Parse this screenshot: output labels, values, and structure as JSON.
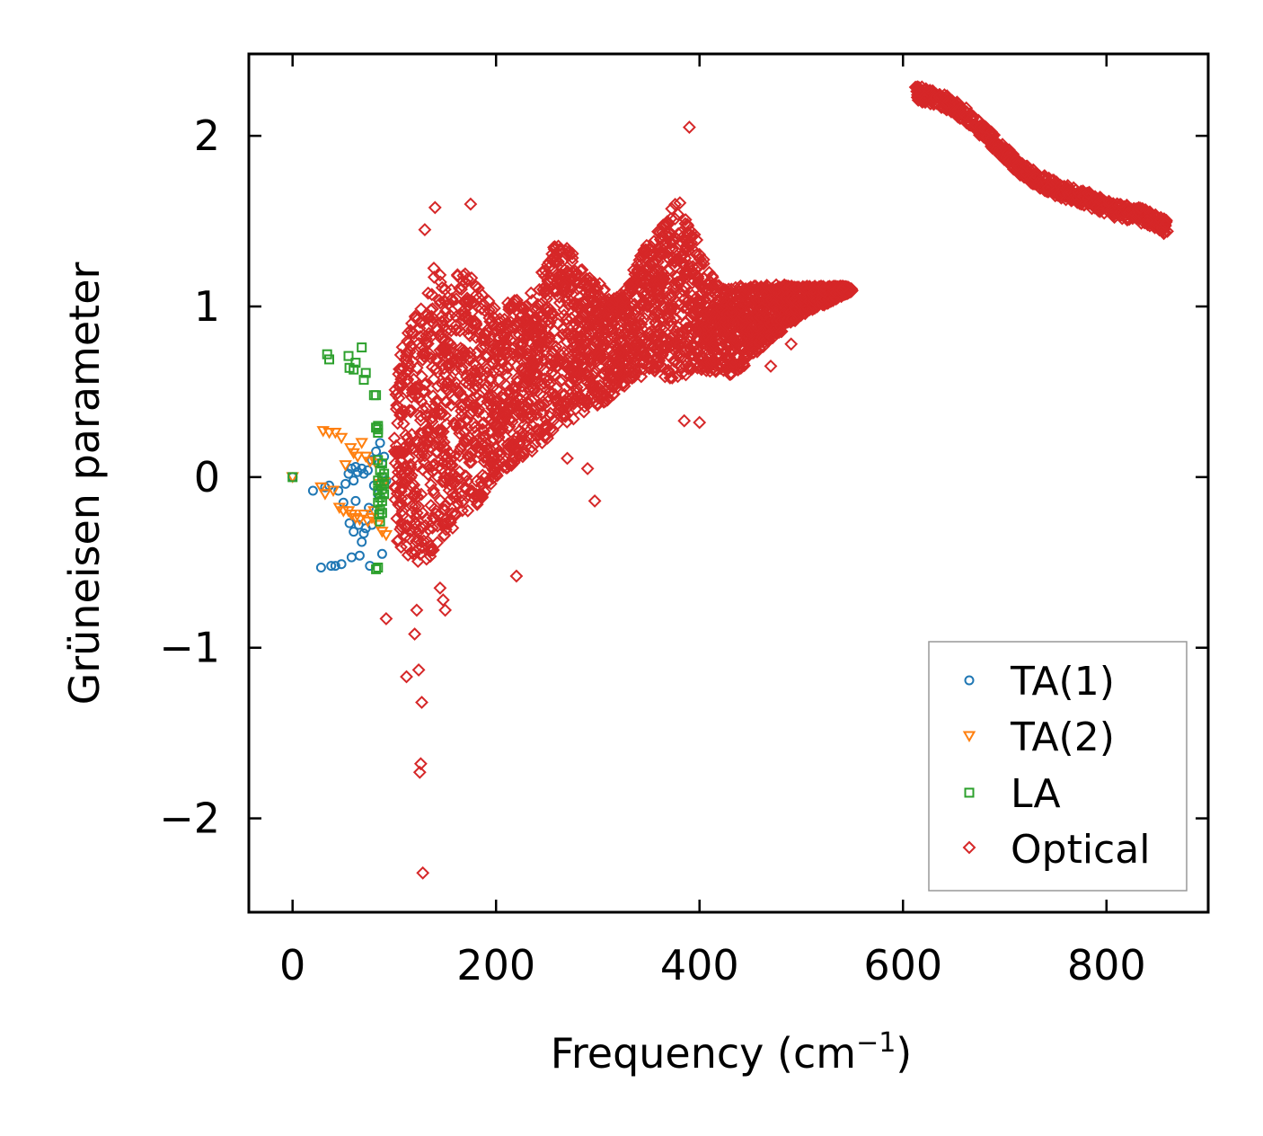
{
  "chart_data": {
    "type": "scatter",
    "title": "",
    "xlabel": "Frequency (cm",
    "xlabel_sup": "−1",
    "xlabel_close": ")",
    "ylabel": "Grüneisen parameter",
    "xlim": [
      -43,
      900
    ],
    "ylim": [
      -2.55,
      2.48
    ],
    "xticks": [
      0,
      200,
      400,
      600,
      800
    ],
    "yticks": [
      -2,
      -1,
      0,
      1,
      2
    ],
    "xtick_labels": [
      "0",
      "200",
      "400",
      "600",
      "800"
    ],
    "ytick_labels": [
      "−2",
      "−1",
      "0",
      "1",
      "2"
    ],
    "legend_position": "lower-right",
    "series": [
      {
        "name": "TA(1)",
        "color": "#1f77b4",
        "marker": "circle",
        "points": [
          [
            0,
            0
          ],
          [
            20,
            -0.08
          ],
          [
            28,
            -0.53
          ],
          [
            32,
            -0.06
          ],
          [
            36,
            -0.05
          ],
          [
            38,
            -0.52
          ],
          [
            42,
            -0.52
          ],
          [
            45,
            -0.08
          ],
          [
            48,
            -0.51
          ],
          [
            50,
            -0.15
          ],
          [
            52,
            -0.04
          ],
          [
            55,
            0.02
          ],
          [
            56,
            -0.27
          ],
          [
            58,
            -0.47
          ],
          [
            58,
            0.05
          ],
          [
            60,
            -0.02
          ],
          [
            60,
            -0.32
          ],
          [
            62,
            0.06
          ],
          [
            62,
            -0.14
          ],
          [
            64,
            0.03
          ],
          [
            65,
            -0.28
          ],
          [
            66,
            -0.46
          ],
          [
            68,
            0.05
          ],
          [
            68,
            -0.38
          ],
          [
            70,
            -0.33
          ],
          [
            70,
            0.02
          ],
          [
            72,
            -0.3
          ],
          [
            74,
            0.04
          ],
          [
            75,
            -0.18
          ],
          [
            76,
            -0.52
          ],
          [
            78,
            -0.28
          ],
          [
            78,
            0.1
          ],
          [
            80,
            -0.05
          ],
          [
            82,
            0.15
          ],
          [
            84,
            -0.1
          ],
          [
            86,
            0.2
          ],
          [
            88,
            0.08
          ],
          [
            88,
            -0.45
          ],
          [
            90,
            0.12
          ],
          [
            92,
            -0.02
          ]
        ]
      },
      {
        "name": "TA(2)",
        "color": "#ff7f0e",
        "marker": "triangle-down",
        "points": [
          [
            0,
            0
          ],
          [
            28,
            -0.06
          ],
          [
            30,
            0.27
          ],
          [
            32,
            -0.1
          ],
          [
            36,
            0.26
          ],
          [
            40,
            -0.08
          ],
          [
            42,
            0.26
          ],
          [
            46,
            -0.18
          ],
          [
            48,
            0.23
          ],
          [
            50,
            -0.2
          ],
          [
            52,
            0.07
          ],
          [
            55,
            -0.2
          ],
          [
            57,
            0.17
          ],
          [
            58,
            -0.22
          ],
          [
            60,
            0.14
          ],
          [
            62,
            -0.24
          ],
          [
            64,
            0.12
          ],
          [
            66,
            -0.25
          ],
          [
            68,
            0.2
          ],
          [
            70,
            -0.22
          ],
          [
            72,
            0.12
          ],
          [
            74,
            -0.26
          ],
          [
            76,
            0.09
          ],
          [
            78,
            -0.24
          ],
          [
            80,
            -0.2
          ],
          [
            82,
            0.08
          ],
          [
            84,
            -0.28
          ],
          [
            86,
            -0.04
          ],
          [
            88,
            -0.32
          ],
          [
            90,
            -0.03
          ],
          [
            92,
            -0.34
          ]
        ]
      },
      {
        "name": "LA",
        "color": "#2ca02c",
        "marker": "square",
        "points": [
          [
            0,
            0
          ],
          [
            34,
            0.72
          ],
          [
            36,
            0.69
          ],
          [
            55,
            0.71
          ],
          [
            56,
            0.64
          ],
          [
            60,
            0.63
          ],
          [
            62,
            0.67
          ],
          [
            68,
            0.76
          ],
          [
            70,
            0.57
          ],
          [
            72,
            0.61
          ],
          [
            80,
            0.48
          ],
          [
            82,
            0.48
          ],
          [
            82,
            0.29
          ],
          [
            84,
            0.3
          ],
          [
            84,
            0.28
          ],
          [
            84,
            0.26
          ],
          [
            84,
            -0.53
          ],
          [
            82,
            -0.54
          ],
          [
            84,
            0.1
          ],
          [
            84,
            -0.02
          ],
          [
            84,
            -0.08
          ],
          [
            84,
            -0.15
          ],
          [
            85,
            -0.22
          ],
          [
            86,
            0.04
          ],
          [
            86,
            -0.05
          ],
          [
            86,
            -0.12
          ],
          [
            86,
            -0.19
          ],
          [
            86,
            -0.26
          ],
          [
            88,
            0.08
          ],
          [
            88,
            0.0
          ],
          [
            88,
            -0.07
          ],
          [
            88,
            -0.14
          ],
          [
            88,
            -0.21
          ],
          [
            90,
            -0.1
          ],
          [
            90,
            0.02
          ],
          [
            90,
            -0.04
          ]
        ]
      },
      {
        "name": "Optical",
        "color": "#d62728",
        "marker": "diamond",
        "bands": [
          [
            100,
            -0.35,
            0.55
          ],
          [
            110,
            -0.45,
            0.82
          ],
          [
            120,
            -0.5,
            0.95
          ],
          [
            130,
            -0.5,
            1.05
          ],
          [
            140,
            -0.45,
            1.25
          ],
          [
            150,
            -0.35,
            1.15
          ],
          [
            160,
            -0.28,
            1.22
          ],
          [
            170,
            -0.2,
            1.25
          ],
          [
            180,
            -0.2,
            1.2
          ],
          [
            190,
            -0.08,
            1.05
          ],
          [
            200,
            0.0,
            1.0
          ],
          [
            210,
            0.05,
            1.02
          ],
          [
            220,
            0.08,
            1.05
          ],
          [
            230,
            0.12,
            1.05
          ],
          [
            240,
            0.15,
            1.12
          ],
          [
            250,
            0.22,
            1.28
          ],
          [
            260,
            0.3,
            1.38
          ],
          [
            270,
            0.32,
            1.35
          ],
          [
            280,
            0.35,
            1.28
          ],
          [
            290,
            0.38,
            1.18
          ],
          [
            300,
            0.42,
            1.15
          ],
          [
            310,
            0.45,
            1.08
          ],
          [
            320,
            0.5,
            1.05
          ],
          [
            330,
            0.55,
            1.15
          ],
          [
            340,
            0.58,
            1.28
          ],
          [
            350,
            0.6,
            1.38
          ],
          [
            360,
            0.6,
            1.45
          ],
          [
            370,
            0.58,
            1.55
          ],
          [
            380,
            0.56,
            1.65
          ],
          [
            390,
            0.6,
            1.5
          ],
          [
            400,
            0.62,
            1.35
          ],
          [
            410,
            0.62,
            1.2
          ],
          [
            420,
            0.6,
            1.15
          ],
          [
            430,
            0.6,
            1.1
          ],
          [
            440,
            0.62,
            1.12
          ],
          [
            450,
            0.7,
            1.12
          ],
          [
            460,
            0.75,
            1.12
          ],
          [
            470,
            0.8,
            1.13
          ],
          [
            480,
            0.85,
            1.13
          ],
          [
            490,
            0.9,
            1.12
          ],
          [
            500,
            0.94,
            1.12
          ],
          [
            510,
            0.98,
            1.12
          ],
          [
            520,
            1.0,
            1.12
          ],
          [
            530,
            1.03,
            1.12
          ],
          [
            540,
            1.06,
            1.12
          ],
          [
            550,
            1.09,
            1.11
          ]
        ],
        "high_branch": [
          [
            612,
            2.25
          ],
          [
            620,
            2.24
          ],
          [
            630,
            2.22
          ],
          [
            640,
            2.2
          ],
          [
            650,
            2.17
          ],
          [
            660,
            2.13
          ],
          [
            670,
            2.08
          ],
          [
            680,
            2.02
          ],
          [
            690,
            1.96
          ],
          [
            700,
            1.9
          ],
          [
            710,
            1.84
          ],
          [
            720,
            1.79
          ],
          [
            730,
            1.75
          ],
          [
            740,
            1.72
          ],
          [
            750,
            1.69
          ],
          [
            760,
            1.67
          ],
          [
            770,
            1.65
          ],
          [
            780,
            1.63
          ],
          [
            790,
            1.61
          ],
          [
            800,
            1.58
          ],
          [
            810,
            1.56
          ],
          [
            820,
            1.55
          ],
          [
            830,
            1.54
          ],
          [
            840,
            1.52
          ],
          [
            850,
            1.49
          ],
          [
            860,
            1.46
          ]
        ],
        "outliers": [
          [
            92,
            -0.83
          ],
          [
            112,
            -1.17
          ],
          [
            120,
            -0.92
          ],
          [
            122,
            -0.78
          ],
          [
            124,
            -1.13
          ],
          [
            125,
            -1.73
          ],
          [
            126,
            -1.68
          ],
          [
            127,
            -1.32
          ],
          [
            128,
            -2.32
          ],
          [
            150,
            -0.78
          ],
          [
            148,
            -0.72
          ],
          [
            145,
            -0.65
          ],
          [
            390,
            2.05
          ],
          [
            175,
            1.6
          ],
          [
            140,
            1.58
          ],
          [
            130,
            1.45
          ],
          [
            297,
            -0.14
          ],
          [
            220,
            -0.58
          ],
          [
            270,
            0.11
          ],
          [
            290,
            0.05
          ],
          [
            400,
            0.32
          ],
          [
            385,
            0.33
          ],
          [
            470,
            0.65
          ],
          [
            490,
            0.78
          ]
        ]
      }
    ]
  }
}
